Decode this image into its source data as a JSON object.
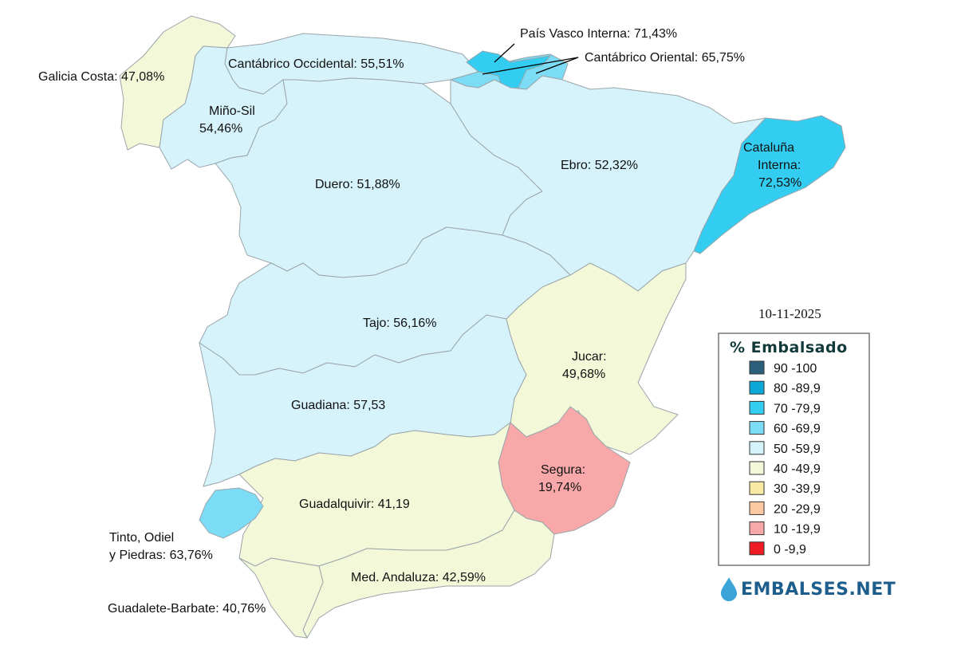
{
  "date": "10-11-2025",
  "legend": {
    "title": "% Embalsado",
    "items": [
      {
        "label": "90 -100",
        "color": "#2a6079"
      },
      {
        "label": "80 -89,9",
        "color": "#0ba8d8"
      },
      {
        "label": "70 -79,9",
        "color": "#33cdf2"
      },
      {
        "label": "60 -69,9",
        "color": "#7cdcf6"
      },
      {
        "label": "50 -59,9",
        "color": "#d6f3fb"
      },
      {
        "label": "40 -49,9",
        "color": "#f3f8d9"
      },
      {
        "label": "30 -39,9",
        "color": "#fae8a5"
      },
      {
        "label": "20 -29,9",
        "color": "#fcc9a3"
      },
      {
        "label": "10 -19,9",
        "color": "#f8a8a8"
      },
      {
        "label": "0 -9,9",
        "color": "#ef1c24"
      }
    ]
  },
  "brand": "EMBALSES.NET",
  "basins": {
    "galicia_costa": {
      "label": "Galicia Costa: 47,08%",
      "value": 47.08,
      "color": "#f3f8d9"
    },
    "cantabrico_occidental": {
      "label": "Cantábrico Occidental: 55,51%",
      "value": 55.51,
      "color": "#d6f3fb"
    },
    "pais_vasco_interna": {
      "label": "País Vasco Interna: 71,43%",
      "value": 71.43,
      "color": "#33cdf2"
    },
    "cantabrico_oriental": {
      "label": "Cantábrico Oriental: 65,75%",
      "value": 65.75,
      "color": "#7cdcf6"
    },
    "mino_sil": {
      "label1": "Miño-Sil",
      "label2": "54,46%",
      "value": 54.46,
      "color": "#d6f3fb"
    },
    "duero": {
      "label": "Duero: 51,88%",
      "value": 51.88,
      "color": "#d6f3fb"
    },
    "ebro": {
      "label": "Ebro: 52,32%",
      "value": 52.32,
      "color": "#d6f3fb"
    },
    "cataluna_interna": {
      "label1": "Cataluña",
      "label2": "Interna:",
      "label3": "72,53%",
      "value": 72.53,
      "color": "#33cdf2"
    },
    "tajo": {
      "label": "Tajo: 56,16%",
      "value": 56.16,
      "color": "#d6f3fb"
    },
    "jucar": {
      "label1": "Jucar:",
      "label2": "49,68%",
      "value": 49.68,
      "color": "#f3f8d9"
    },
    "guadiana": {
      "label": "Guadiana: 57,53",
      "value": 57.53,
      "color": "#d6f3fb"
    },
    "segura": {
      "label1": "Segura:",
      "label2": "19,74%",
      "value": 19.74,
      "color": "#f8a8a8"
    },
    "guadalquivir": {
      "label": "Guadalquivir: 41,19",
      "value": 41.19,
      "color": "#f3f8d9"
    },
    "tinto_odiel_piedras": {
      "label1": "Tinto, Odiel",
      "label2": "y Piedras: 63,76%",
      "value": 63.76,
      "color": "#7cdcf6"
    },
    "med_andaluza": {
      "label": "Med. Andaluza: 42,59%",
      "value": 42.59,
      "color": "#f3f8d9"
    },
    "guadalete_barbate": {
      "label": "Guadalete-Barbate: 40,76%",
      "value": 40.76,
      "color": "#f3f8d9"
    }
  }
}
